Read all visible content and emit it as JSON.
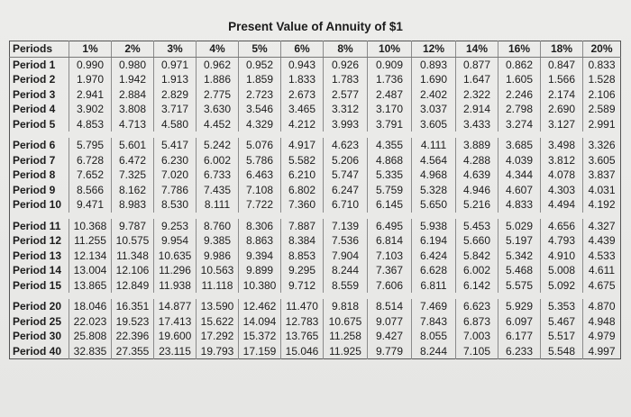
{
  "title": "Present Value of Annuity of $1",
  "header": [
    "Periods",
    "1%",
    "2%",
    "3%",
    "4%",
    "5%",
    "6%",
    "8%",
    "10%",
    "12%",
    "14%",
    "16%",
    "18%",
    "20%"
  ],
  "groups": [
    [
      [
        "Period 1",
        "0.990",
        "0.980",
        "0.971",
        "0.962",
        "0.952",
        "0.943",
        "0.926",
        "0.909",
        "0.893",
        "0.877",
        "0.862",
        "0.847",
        "0.833"
      ],
      [
        "Period 2",
        "1.970",
        "1.942",
        "1.913",
        "1.886",
        "1.859",
        "1.833",
        "1.783",
        "1.736",
        "1.690",
        "1.647",
        "1.605",
        "1.566",
        "1.528"
      ],
      [
        "Period 3",
        "2.941",
        "2.884",
        "2.829",
        "2.775",
        "2.723",
        "2.673",
        "2.577",
        "2.487",
        "2.402",
        "2.322",
        "2.246",
        "2.174",
        "2.106"
      ],
      [
        "Period 4",
        "3.902",
        "3.808",
        "3.717",
        "3.630",
        "3.546",
        "3.465",
        "3.312",
        "3.170",
        "3.037",
        "2.914",
        "2.798",
        "2.690",
        "2.589"
      ],
      [
        "Period 5",
        "4.853",
        "4.713",
        "4.580",
        "4.452",
        "4.329",
        "4.212",
        "3.993",
        "3.791",
        "3.605",
        "3.433",
        "3.274",
        "3.127",
        "2.991"
      ]
    ],
    [
      [
        "Period 6",
        "5.795",
        "5.601",
        "5.417",
        "5.242",
        "5.076",
        "4.917",
        "4.623",
        "4.355",
        "4.111",
        "3.889",
        "3.685",
        "3.498",
        "3.326"
      ],
      [
        "Period 7",
        "6.728",
        "6.472",
        "6.230",
        "6.002",
        "5.786",
        "5.582",
        "5.206",
        "4.868",
        "4.564",
        "4.288",
        "4.039",
        "3.812",
        "3.605"
      ],
      [
        "Period 8",
        "7.652",
        "7.325",
        "7.020",
        "6.733",
        "6.463",
        "6.210",
        "5.747",
        "5.335",
        "4.968",
        "4.639",
        "4.344",
        "4.078",
        "3.837"
      ],
      [
        "Period 9",
        "8.566",
        "8.162",
        "7.786",
        "7.435",
        "7.108",
        "6.802",
        "6.247",
        "5.759",
        "5.328",
        "4.946",
        "4.607",
        "4.303",
        "4.031"
      ],
      [
        "Period 10",
        "9.471",
        "8.983",
        "8.530",
        "8.111",
        "7.722",
        "7.360",
        "6.710",
        "6.145",
        "5.650",
        "5.216",
        "4.833",
        "4.494",
        "4.192"
      ]
    ],
    [
      [
        "Period 11",
        "10.368",
        "9.787",
        "9.253",
        "8.760",
        "8.306",
        "7.887",
        "7.139",
        "6.495",
        "5.938",
        "5.453",
        "5.029",
        "4.656",
        "4.327"
      ],
      [
        "Period 12",
        "11.255",
        "10.575",
        "9.954",
        "9.385",
        "8.863",
        "8.384",
        "7.536",
        "6.814",
        "6.194",
        "5.660",
        "5.197",
        "4.793",
        "4.439"
      ],
      [
        "Period 13",
        "12.134",
        "11.348",
        "10.635",
        "9.986",
        "9.394",
        "8.853",
        "7.904",
        "7.103",
        "6.424",
        "5.842",
        "5.342",
        "4.910",
        "4.533"
      ],
      [
        "Period 14",
        "13.004",
        "12.106",
        "11.296",
        "10.563",
        "9.899",
        "9.295",
        "8.244",
        "7.367",
        "6.628",
        "6.002",
        "5.468",
        "5.008",
        "4.611"
      ],
      [
        "Period 15",
        "13.865",
        "12.849",
        "11.938",
        "11.118",
        "10.380",
        "9.712",
        "8.559",
        "7.606",
        "6.811",
        "6.142",
        "5.575",
        "5.092",
        "4.675"
      ]
    ],
    [
      [
        "Period 20",
        "18.046",
        "16.351",
        "14.877",
        "13.590",
        "12.462",
        "11.470",
        "9.818",
        "8.514",
        "7.469",
        "6.623",
        "5.929",
        "5.353",
        "4.870"
      ],
      [
        "Period 25",
        "22.023",
        "19.523",
        "17.413",
        "15.622",
        "14.094",
        "12.783",
        "10.675",
        "9.077",
        "7.843",
        "6.873",
        "6.097",
        "5.467",
        "4.948"
      ],
      [
        "Period 30",
        "25.808",
        "22.396",
        "19.600",
        "17.292",
        "15.372",
        "13.765",
        "11.258",
        "9.427",
        "8.055",
        "7.003",
        "6.177",
        "5.517",
        "4.979"
      ],
      [
        "Period 40",
        "32.835",
        "27.355",
        "23.115",
        "19.793",
        "17.159",
        "15.046",
        "11.925",
        "9.779",
        "8.244",
        "7.105",
        "6.233",
        "5.548",
        "4.997"
      ]
    ]
  ]
}
